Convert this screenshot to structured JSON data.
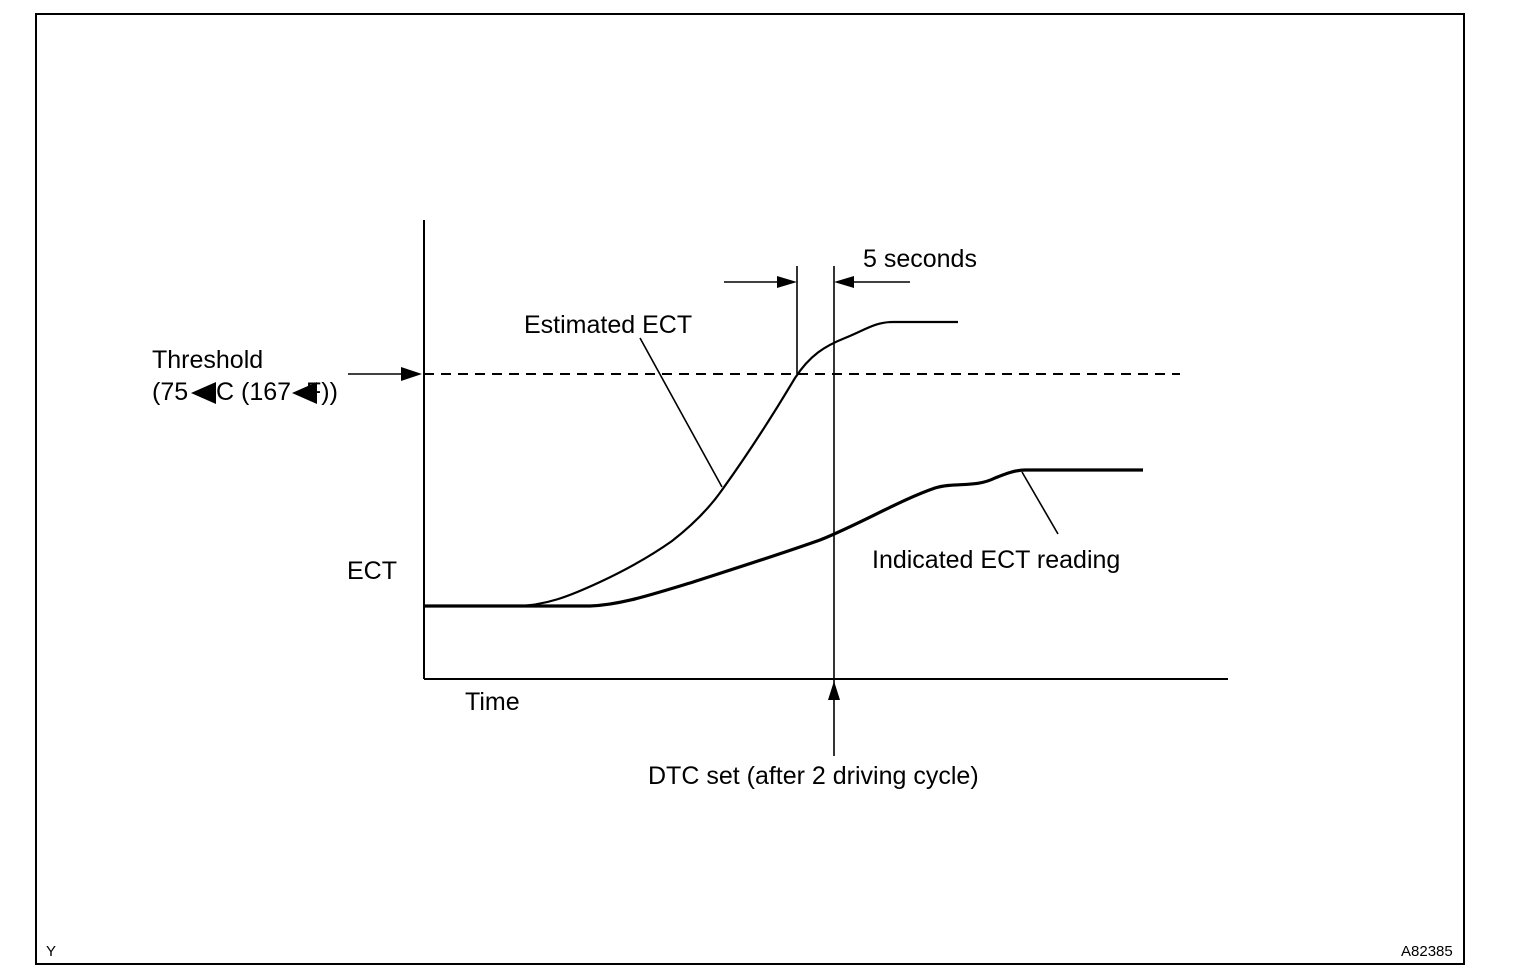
{
  "labels": {
    "five_seconds": "5 seconds",
    "estimated_ect": "Estimated ECT",
    "threshold_line1": "Threshold",
    "threshold_line2": "(75",
    "threshold_line2_b": "C (167",
    "threshold_line2_c": "F))",
    "ect_axis": "ECT",
    "indicated_ect": "Indicated ECT reading",
    "time_axis": "Time",
    "dtc_set": "DTC set (after 2 driving cycle)",
    "corner_left": "Y",
    "corner_right": "A82385"
  },
  "colors": {
    "stroke": "#000000",
    "background": "#ffffff"
  }
}
